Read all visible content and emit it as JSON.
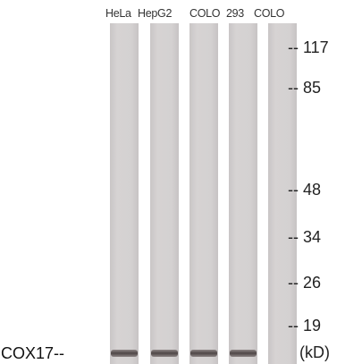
{
  "lanes": [
    {
      "label": "HeLa"
    },
    {
      "label": "HepG2"
    },
    {
      "label": "COLO"
    },
    {
      "label": "293"
    },
    {
      "label": "COLO"
    }
  ],
  "markers": [
    {
      "label": "-- 117"
    },
    {
      "label": "-- 85"
    },
    {
      "label": "-- 48"
    },
    {
      "label": "-- 34"
    },
    {
      "label": "-- 26"
    },
    {
      "label": "-- 19"
    }
  ],
  "band_label": "COX17--",
  "unit_label": "(kD)",
  "colors": {
    "lane": "#d2cfcf",
    "lane_dark": "#c4c0c1",
    "band": "#5a5252",
    "background": "#ffffff"
  }
}
